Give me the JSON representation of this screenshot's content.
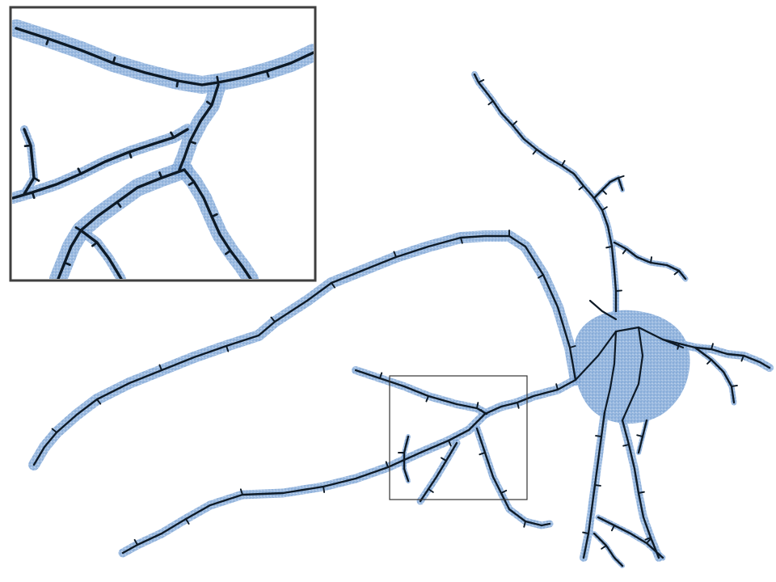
{
  "colors": {
    "background": "#ffffff",
    "point_cloud": "#6f9bd1",
    "point_cloud_dark": "#4f7fbf",
    "skeleton": "#0e1a26",
    "inset_border": "#3f3f3f",
    "zoom_box": "#333333"
  },
  "figure": {
    "kind": "neuron-reconstruction",
    "layers": [
      "point-cloud",
      "skeleton"
    ],
    "has_inset": true,
    "inset_position": "top-left",
    "zoom_region_marked": true
  }
}
